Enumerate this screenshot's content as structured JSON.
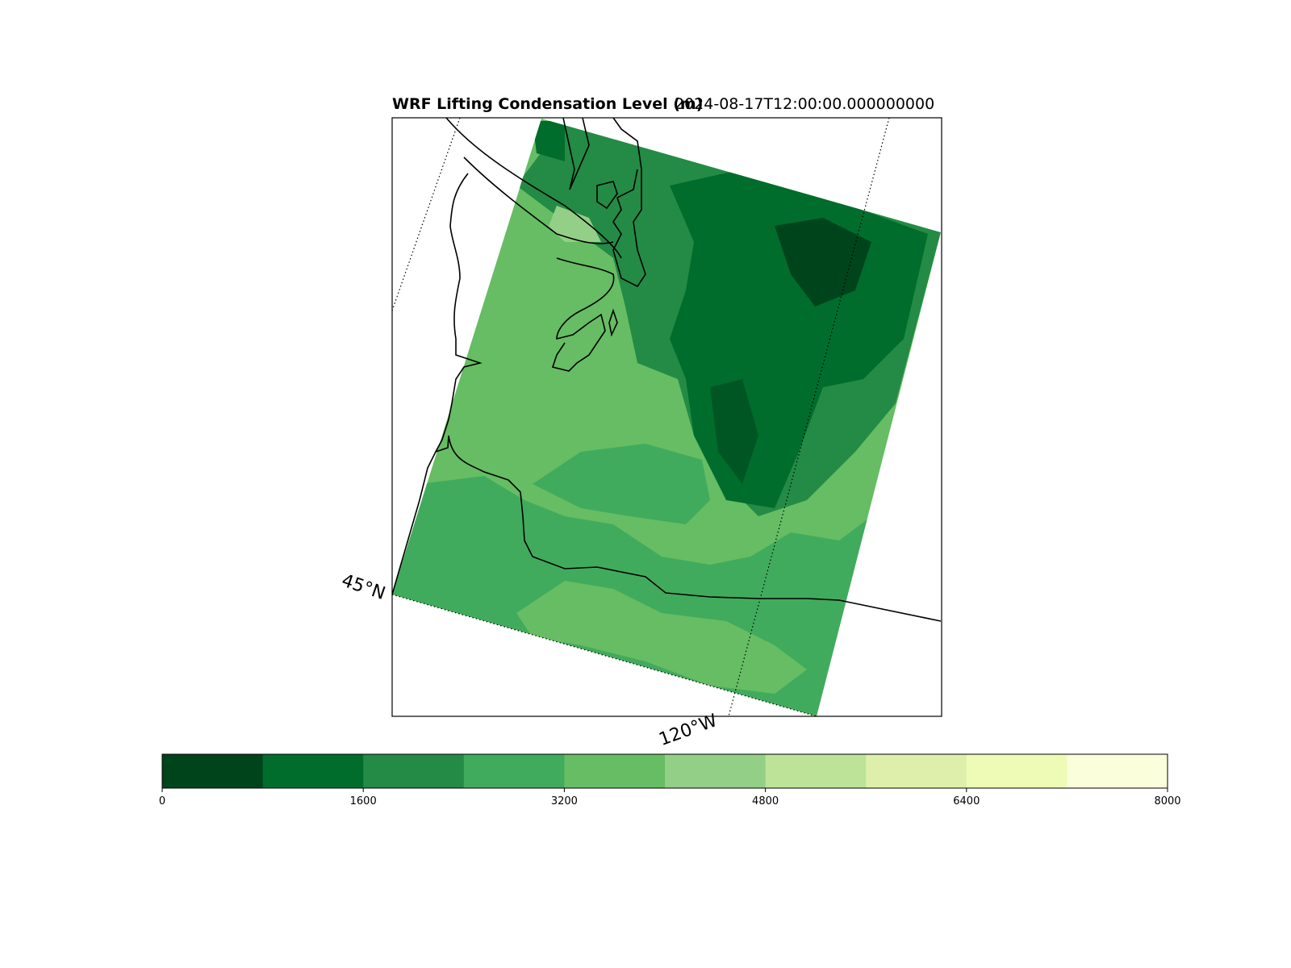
{
  "title": {
    "main": "WRF Lifting Condensation Level (m)",
    "time": "2024-08-17T12:00:00.000000000"
  },
  "gridlines": {
    "lat_label": "45°N",
    "lon_label": "120°W"
  },
  "colorbar": {
    "min": 0,
    "max": 8000,
    "levels": [
      0,
      800,
      1600,
      2400,
      3200,
      4000,
      4800,
      5600,
      6400,
      7200,
      8000
    ],
    "colors": [
      "#00441b",
      "#006d2c",
      "#238b45",
      "#41ab5d",
      "#66bd63",
      "#93cf86",
      "#bce397",
      "#ddefaa",
      "#eefbb6",
      "#fbfedb"
    ],
    "tick_labels": [
      "0",
      "1600",
      "3200",
      "4800",
      "6400",
      "8000"
    ]
  },
  "map_colors": {
    "outline": "#000000",
    "frame": "#000000",
    "background": "#ffffff"
  }
}
